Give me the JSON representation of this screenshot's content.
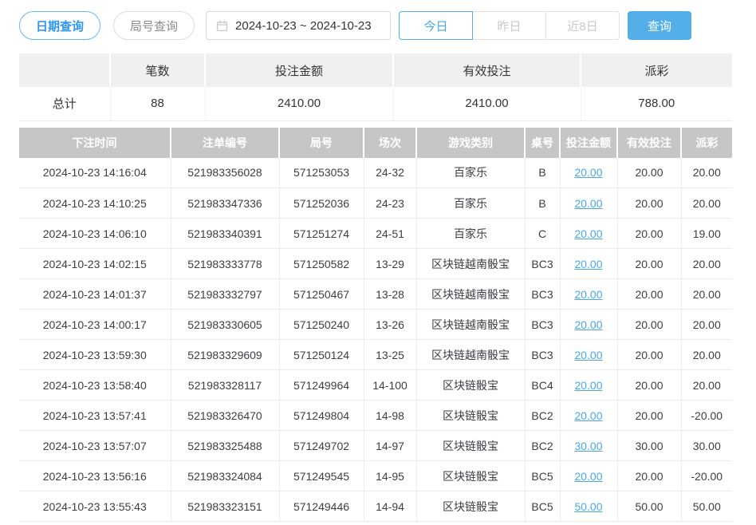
{
  "colors": {
    "accent_blue": "#54aeec",
    "primary_button_blue": "#54afe9",
    "link_blue": "#4aa8e8",
    "negative_red": "#ee5b63",
    "table_header_gray": "#c6c6c6",
    "summary_header_gray": "#f0f0f0"
  },
  "toolbar": {
    "date_query_label": "日期查询",
    "round_query_label": "局号查询",
    "date_range": {
      "icon": "calendar-icon",
      "value": "2024-10-23 ~ 2024-10-23"
    },
    "quick_filters": [
      {
        "label": "今日",
        "active": true
      },
      {
        "label": "昨日",
        "active": false
      },
      {
        "label": "近8日",
        "active": false
      }
    ],
    "search_label": "查询"
  },
  "summary_table": {
    "columns": [
      "",
      "笔数",
      "投注金额",
      "有效投注",
      "派彩"
    ],
    "total_row": {
      "label": "总计",
      "values": [
        "88",
        "2410.00",
        "2410.00",
        "788.00"
      ]
    }
  },
  "bet_table": {
    "columns": [
      "下注时间",
      "注单编号",
      "局号",
      "场次",
      "游戏类别",
      "桌号",
      "投注金额",
      "有效投注",
      "派彩"
    ],
    "rows": [
      {
        "time": "2024-10-23 14:16:04",
        "bet_no": "521983356028",
        "round_no": "571253053",
        "session": "24-32",
        "game": "百家乐",
        "table": "B",
        "bet_amount": "20.00",
        "valid_bet": "20.00",
        "payout": "20.00"
      },
      {
        "time": "2024-10-23 14:10:25",
        "bet_no": "521983347336",
        "round_no": "571252036",
        "session": "24-23",
        "game": "百家乐",
        "table": "B",
        "bet_amount": "20.00",
        "valid_bet": "20.00",
        "payout": "20.00"
      },
      {
        "time": "2024-10-23 14:06:10",
        "bet_no": "521983340391",
        "round_no": "571251274",
        "session": "24-51",
        "game": "百家乐",
        "table": "C",
        "bet_amount": "20.00",
        "valid_bet": "20.00",
        "payout": "19.00"
      },
      {
        "time": "2024-10-23 14:02:15",
        "bet_no": "521983333778",
        "round_no": "571250582",
        "session": "13-29",
        "game": "区块链越南骰宝",
        "table": "BC3",
        "bet_amount": "20.00",
        "valid_bet": "20.00",
        "payout": "20.00"
      },
      {
        "time": "2024-10-23 14:01:37",
        "bet_no": "521983332797",
        "round_no": "571250467",
        "session": "13-28",
        "game": "区块链越南骰宝",
        "table": "BC3",
        "bet_amount": "20.00",
        "valid_bet": "20.00",
        "payout": "20.00"
      },
      {
        "time": "2024-10-23 14:00:17",
        "bet_no": "521983330605",
        "round_no": "571250240",
        "session": "13-26",
        "game": "区块链越南骰宝",
        "table": "BC3",
        "bet_amount": "20.00",
        "valid_bet": "20.00",
        "payout": "20.00"
      },
      {
        "time": "2024-10-23 13:59:30",
        "bet_no": "521983329609",
        "round_no": "571250124",
        "session": "13-25",
        "game": "区块链越南骰宝",
        "table": "BC3",
        "bet_amount": "20.00",
        "valid_bet": "20.00",
        "payout": "20.00"
      },
      {
        "time": "2024-10-23 13:58:40",
        "bet_no": "521983328117",
        "round_no": "571249964",
        "session": "14-100",
        "game": "区块链骰宝",
        "table": "BC4",
        "bet_amount": "20.00",
        "valid_bet": "20.00",
        "payout": "20.00"
      },
      {
        "time": "2024-10-23 13:57:41",
        "bet_no": "521983326470",
        "round_no": "571249804",
        "session": "14-98",
        "game": "区块链骰宝",
        "table": "BC2",
        "bet_amount": "20.00",
        "valid_bet": "20.00",
        "payout": "-20.00"
      },
      {
        "time": "2024-10-23 13:57:07",
        "bet_no": "521983325488",
        "round_no": "571249702",
        "session": "14-97",
        "game": "区块链骰宝",
        "table": "BC2",
        "bet_amount": "30.00",
        "valid_bet": "30.00",
        "payout": "30.00"
      },
      {
        "time": "2024-10-23 13:56:16",
        "bet_no": "521983324084",
        "round_no": "571249545",
        "session": "14-95",
        "game": "区块链骰宝",
        "table": "BC5",
        "bet_amount": "20.00",
        "valid_bet": "20.00",
        "payout": "-20.00"
      },
      {
        "time": "2024-10-23 13:55:43",
        "bet_no": "521983323151",
        "round_no": "571249446",
        "session": "14-94",
        "game": "区块链骰宝",
        "table": "BC5",
        "bet_amount": "50.00",
        "valid_bet": "50.00",
        "payout": "50.00"
      }
    ]
  }
}
